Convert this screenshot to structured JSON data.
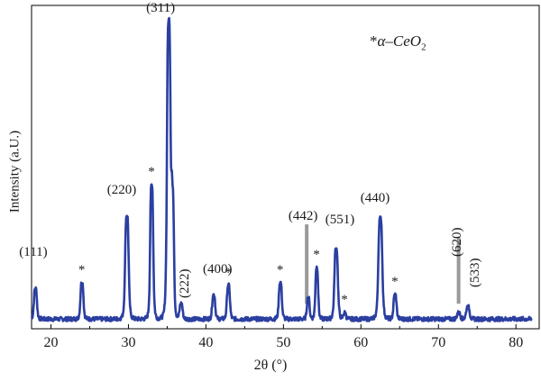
{
  "chart_data": {
    "type": "line",
    "xlabel": "2θ (°)",
    "ylabel": "Intensity (a.U.)",
    "xlim": [
      17.5,
      83
    ],
    "ylim": [
      0,
      100
    ],
    "x_ticks": [
      "20",
      "30",
      "40",
      "50",
      "60",
      "70",
      "80"
    ],
    "legend": {
      "marker": "*",
      "text": "α–CeO",
      "subscript": "2",
      "placement": "top-right"
    },
    "line_color": "#2b3fa0",
    "grid": false,
    "baseline": 2,
    "peaks": [
      {
        "x": 18.0,
        "y": 12,
        "w": 0.22,
        "label": "(111)"
      },
      {
        "x": 24.0,
        "y": 14,
        "w": 0.22,
        "star": true
      },
      {
        "x": 29.8,
        "y": 36,
        "w": 0.25,
        "label": "(220)"
      },
      {
        "x": 33.0,
        "y": 46,
        "w": 0.22,
        "star": true
      },
      {
        "x": 35.2,
        "y": 99,
        "w": 0.25,
        "label": "(311)"
      },
      {
        "x": 35.7,
        "y": 40,
        "w": 0.2
      },
      {
        "x": 36.8,
        "y": 7,
        "w": 0.22,
        "label": "(222)"
      },
      {
        "x": 41.0,
        "y": 10,
        "w": 0.22,
        "label": "(400)"
      },
      {
        "x": 42.9,
        "y": 13,
        "w": 0.22,
        "star": true
      },
      {
        "x": 49.6,
        "y": 14,
        "w": 0.22,
        "star": true
      },
      {
        "x": 53.2,
        "y": 9,
        "w": 0.2,
        "label": "(442)"
      },
      {
        "x": 54.3,
        "y": 19,
        "w": 0.2,
        "star": true
      },
      {
        "x": 56.8,
        "y": 25,
        "w": 0.25,
        "label": "(551)"
      },
      {
        "x": 57.9,
        "y": 4,
        "w": 0.2,
        "star": true
      },
      {
        "x": 62.5,
        "y": 35,
        "w": 0.28,
        "label": "(440)"
      },
      {
        "x": 64.4,
        "y": 10,
        "w": 0.22,
        "star": true
      },
      {
        "x": 72.6,
        "y": 4,
        "w": 0.25,
        "label": "(620)"
      },
      {
        "x": 73.8,
        "y": 6,
        "w": 0.25,
        "label": "(533)"
      }
    ],
    "reference_bars": [
      {
        "x": 53.0,
        "y_top": 33,
        "y_bottom": 7
      },
      {
        "x": 72.6,
        "y_top": 29,
        "y_bottom": 7
      }
    ]
  }
}
